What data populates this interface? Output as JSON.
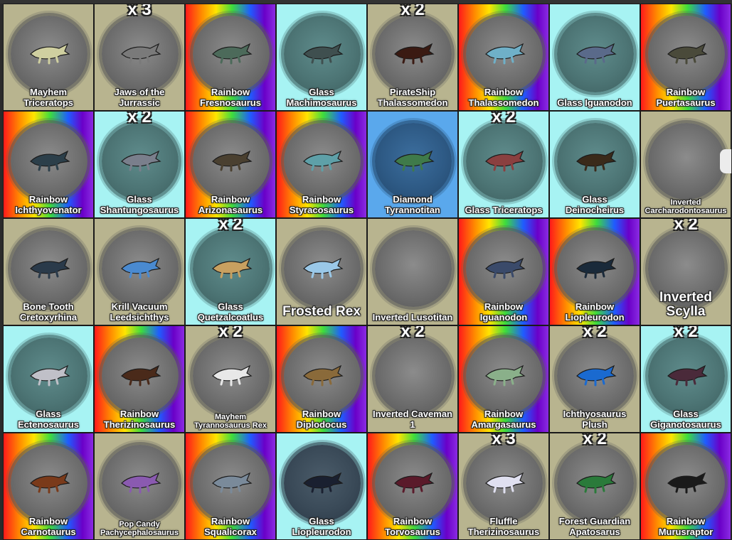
{
  "tiles": [
    {
      "name": "Mayhem\nTriceratops",
      "badge": "",
      "bg": "olive",
      "blob": "gray",
      "color": "#cfcfa0"
    },
    {
      "name": "Jaws of the\nJurrassic",
      "badge": "x 3",
      "bg": "olive",
      "blob": "gray",
      "color": "#7a7a7a"
    },
    {
      "name": "Rainbow\nFresnosaurus",
      "badge": "",
      "bg": "rainbow",
      "blob": "gray",
      "color": "#4c6a5a"
    },
    {
      "name": "Glass\nMachimosaurus",
      "badge": "",
      "bg": "cyan",
      "blob": "teal",
      "color": "#3f4f4f"
    },
    {
      "name": "PirateShip\nThalassomedon",
      "badge": "x 2",
      "bg": "olive",
      "blob": "gray",
      "color": "#3a1a12"
    },
    {
      "name": "Rainbow\nThalassomedon",
      "badge": "",
      "bg": "rainbow",
      "blob": "gray",
      "color": "#6fb0c8"
    },
    {
      "name": "Glass Iguanodon",
      "badge": "",
      "bg": "cyan",
      "blob": "teal",
      "color": "#5a6a8a"
    },
    {
      "name": "Rainbow\nPuertasaurus",
      "badge": "",
      "bg": "rainbow",
      "blob": "gray",
      "color": "#4a4a3a"
    },
    {
      "name": "Rainbow\nIchthyovenator",
      "badge": "",
      "bg": "rainbow",
      "blob": "gray",
      "color": "#2c3f4a"
    },
    {
      "name": "Glass\nShantungosaurus",
      "badge": "x 2",
      "bg": "cyan",
      "blob": "teal",
      "color": "#7a7f8c"
    },
    {
      "name": "Rainbow\nArizonasaurus",
      "badge": "",
      "bg": "rainbow",
      "blob": "gray",
      "color": "#4a4030"
    },
    {
      "name": "Rainbow\nStyracosaurus",
      "badge": "",
      "bg": "rainbow",
      "blob": "gray",
      "color": "#5ea0a8"
    },
    {
      "name": "Diamond\nTyrannotitan",
      "badge": "",
      "bg": "blue",
      "blob": "navy",
      "color": "#3f7a4a"
    },
    {
      "name": "Glass Triceratops",
      "badge": "x 2",
      "bg": "cyan",
      "blob": "teal",
      "color": "#8a4040"
    },
    {
      "name": "Glass\nDeinocheirus",
      "badge": "",
      "bg": "cyan",
      "blob": "teal",
      "color": "#3a2a1a"
    },
    {
      "name": "Inverted\nCarcharodontosaurus",
      "badge": "",
      "bg": "olive",
      "blob": "gray",
      "color": "",
      "small": true
    },
    {
      "name": "Bone Tooth\nCretoxyrhina",
      "badge": "",
      "bg": "olive",
      "blob": "gray",
      "color": "#2a3a4a"
    },
    {
      "name": "Krill Vacuum\nLeedsichthys",
      "badge": "",
      "bg": "olive",
      "blob": "gray",
      "color": "#4a8ad0"
    },
    {
      "name": "Glass\nQuetzalcoatlus",
      "badge": "x 2",
      "bg": "cyan",
      "blob": "teal",
      "color": "#c8a060"
    },
    {
      "name": "Frosted Rex",
      "badge": "",
      "bg": "olive",
      "blob": "gray",
      "color": "#9ac8e8",
      "big": true
    },
    {
      "name": "Inverted Lusotitan",
      "badge": "",
      "bg": "olive",
      "blob": "gray",
      "color": ""
    },
    {
      "name": "Rainbow\nIguanodon",
      "badge": "",
      "bg": "rainbow",
      "blob": "gray",
      "color": "#3a4a6a"
    },
    {
      "name": "Rainbow\nLiopleurodon",
      "badge": "",
      "bg": "rainbow",
      "blob": "gray",
      "color": "#1a2a3a"
    },
    {
      "name": "Inverted Scylla",
      "badge": "x 2",
      "bg": "olive",
      "blob": "gray",
      "color": "",
      "big": true
    },
    {
      "name": "Glass\nEctenosaurus",
      "badge": "",
      "bg": "cyan",
      "blob": "teal",
      "color": "#c0c0c8"
    },
    {
      "name": "Rainbow\nTherizinosaurus",
      "badge": "",
      "bg": "rainbow",
      "blob": "gray",
      "color": "#4a2a1a"
    },
    {
      "name": "Mayhem\nTyrannosaurus Rex",
      "badge": "x 2",
      "bg": "olive",
      "blob": "gray",
      "color": "#e8e8e8",
      "small": true
    },
    {
      "name": "Rainbow\nDiplodocus",
      "badge": "",
      "bg": "rainbow",
      "blob": "gray",
      "color": "#8a6a3a"
    },
    {
      "name": "Inverted Caveman\n1",
      "badge": "x 2",
      "bg": "olive",
      "blob": "gray",
      "color": ""
    },
    {
      "name": "Rainbow\nAmargasaurus",
      "badge": "",
      "bg": "rainbow",
      "blob": "gray",
      "color": "#8ab08a"
    },
    {
      "name": "Ichthyosaurus\nPlush",
      "badge": "x 2",
      "bg": "olive",
      "blob": "gray",
      "color": "#1a6ad0"
    },
    {
      "name": "Glass\nGiganotosaurus",
      "badge": "x 2",
      "bg": "cyan",
      "blob": "teal",
      "color": "#4a2a3a"
    },
    {
      "name": "Rainbow\nCarnotaurus",
      "badge": "",
      "bg": "rainbow",
      "blob": "gray",
      "color": "#7a3a1a"
    },
    {
      "name": "Pop Candy\nPachycephalosaurus",
      "badge": "",
      "bg": "olive",
      "blob": "gray",
      "color": "#8a5ab0",
      "small": true
    },
    {
      "name": "Rainbow\nSqualicorax",
      "badge": "",
      "bg": "rainbow",
      "blob": "gray",
      "color": "#7a8a9a"
    },
    {
      "name": "Glass\nLiopleurodon",
      "badge": "",
      "bg": "cyan",
      "blob": "dark",
      "color": "#1a2030"
    },
    {
      "name": "Rainbow\nTorvosaurus",
      "badge": "",
      "bg": "rainbow",
      "blob": "gray",
      "color": "#5a1a2a"
    },
    {
      "name": "Fluffle\nTherizinosaurus",
      "badge": "x 3",
      "bg": "olive",
      "blob": "gray",
      "color": "#e0e0f0"
    },
    {
      "name": "Forest Guardian\nApatosarus",
      "badge": "x 2",
      "bg": "olive",
      "blob": "gray",
      "color": "#2a7a3a"
    },
    {
      "name": "Rainbow\nMurusraptor",
      "badge": "",
      "bg": "rainbow",
      "blob": "gray",
      "color": "#1a1a1a"
    }
  ]
}
